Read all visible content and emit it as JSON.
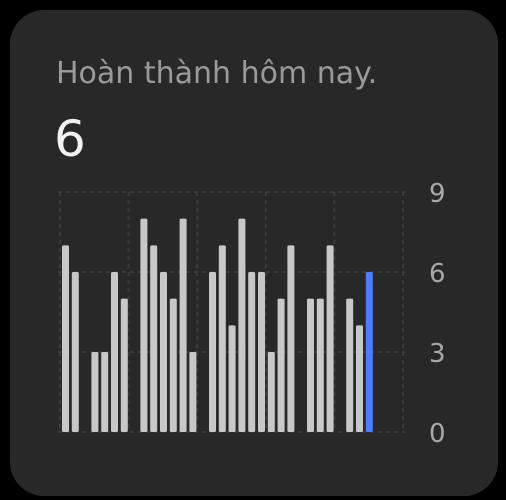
{
  "widget": {
    "title": "Hoàn thành hôm nay.",
    "value": "6"
  },
  "chart_data": {
    "type": "bar",
    "title": "Hoàn thành hôm nay.",
    "xlabel": "",
    "ylabel": "",
    "ylim": [
      0,
      9
    ],
    "yticks": [
      "0",
      "3",
      "6",
      "9"
    ],
    "grid": true,
    "grid_style": "dashed",
    "bar_color": "#c8c8c8",
    "highlight_color": "#4d7cfe",
    "highlight_index": 31,
    "values": [
      7,
      6,
      0,
      3,
      3,
      6,
      5,
      0,
      8,
      7,
      6,
      5,
      8,
      3,
      0,
      6,
      7,
      4,
      8,
      6,
      6,
      3,
      5,
      7,
      0,
      5,
      5,
      7,
      0,
      5,
      4,
      6
    ]
  }
}
